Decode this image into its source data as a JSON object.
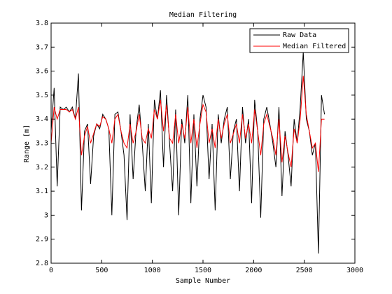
{
  "chart_data": {
    "type": "line",
    "title": "Median Filtering",
    "xlabel": "Sample Number",
    "ylabel": "Range [m]",
    "x": [
      0,
      30,
      60,
      90,
      120,
      150,
      180,
      210,
      240,
      270,
      300,
      330,
      360,
      390,
      420,
      450,
      480,
      510,
      540,
      570,
      600,
      630,
      660,
      690,
      720,
      750,
      780,
      810,
      840,
      870,
      900,
      930,
      960,
      990,
      1020,
      1050,
      1080,
      1110,
      1140,
      1170,
      1200,
      1230,
      1260,
      1290,
      1320,
      1350,
      1380,
      1410,
      1440,
      1470,
      1500,
      1530,
      1560,
      1590,
      1620,
      1650,
      1680,
      1710,
      1740,
      1770,
      1800,
      1830,
      1860,
      1890,
      1920,
      1950,
      1980,
      2010,
      2040,
      2070,
      2100,
      2130,
      2160,
      2190,
      2220,
      2250,
      2280,
      2310,
      2340,
      2370,
      2400,
      2430,
      2460,
      2490,
      2520,
      2550,
      2580,
      2610,
      2640,
      2670,
      2700
    ],
    "series": [
      {
        "name": "Raw Data",
        "color": "#000000",
        "values": [
          3.35,
          3.53,
          3.12,
          3.45,
          3.44,
          3.45,
          3.43,
          3.45,
          3.4,
          3.59,
          3.02,
          3.35,
          3.38,
          3.13,
          3.33,
          3.38,
          3.36,
          3.42,
          3.4,
          3.36,
          3.0,
          3.42,
          3.43,
          3.35,
          3.25,
          2.98,
          3.42,
          3.15,
          3.36,
          3.46,
          3.3,
          3.1,
          3.38,
          3.05,
          3.48,
          3.4,
          3.52,
          3.2,
          3.5,
          3.3,
          3.1,
          3.44,
          3.0,
          3.4,
          3.3,
          3.5,
          3.05,
          3.42,
          3.12,
          3.4,
          3.5,
          3.45,
          3.15,
          3.38,
          3.02,
          3.42,
          3.3,
          3.4,
          3.45,
          3.15,
          3.35,
          3.4,
          3.1,
          3.45,
          3.3,
          3.4,
          3.05,
          3.48,
          3.35,
          2.99,
          3.4,
          3.45,
          3.38,
          3.3,
          3.2,
          3.45,
          3.08,
          3.35,
          3.25,
          3.12,
          3.4,
          3.3,
          3.45,
          3.68,
          3.4,
          3.35,
          3.25,
          3.3,
          2.84,
          3.5,
          3.42
        ]
      },
      {
        "name": "Median Filtered",
        "color": "#ff0000",
        "values": [
          3.3,
          3.45,
          3.4,
          3.44,
          3.44,
          3.44,
          3.43,
          3.44,
          3.4,
          3.45,
          3.25,
          3.33,
          3.37,
          3.3,
          3.34,
          3.38,
          3.37,
          3.41,
          3.4,
          3.36,
          3.3,
          3.4,
          3.42,
          3.35,
          3.3,
          3.28,
          3.38,
          3.3,
          3.35,
          3.42,
          3.32,
          3.3,
          3.36,
          3.32,
          3.44,
          3.4,
          3.48,
          3.35,
          3.46,
          3.32,
          3.3,
          3.42,
          3.3,
          3.38,
          3.32,
          3.45,
          3.3,
          3.4,
          3.28,
          3.38,
          3.46,
          3.43,
          3.3,
          3.36,
          3.28,
          3.4,
          3.32,
          3.38,
          3.42,
          3.3,
          3.34,
          3.38,
          3.3,
          3.42,
          3.32,
          3.38,
          3.3,
          3.44,
          3.35,
          3.25,
          3.38,
          3.42,
          3.37,
          3.32,
          3.25,
          3.4,
          3.22,
          3.33,
          3.26,
          3.2,
          3.36,
          3.3,
          3.4,
          3.58,
          3.42,
          3.35,
          3.28,
          3.3,
          3.18,
          3.4,
          3.4
        ]
      }
    ],
    "xlim": [
      0,
      3000
    ],
    "xticks": [
      0,
      500,
      1000,
      1500,
      2000,
      2500,
      3000
    ],
    "ylim": [
      2.8,
      3.8
    ],
    "yticks": [
      2.8,
      2.9,
      3,
      3.1,
      3.2,
      3.3,
      3.4,
      3.5,
      3.6,
      3.7,
      3.8
    ],
    "grid": false,
    "legend": "northeast"
  }
}
